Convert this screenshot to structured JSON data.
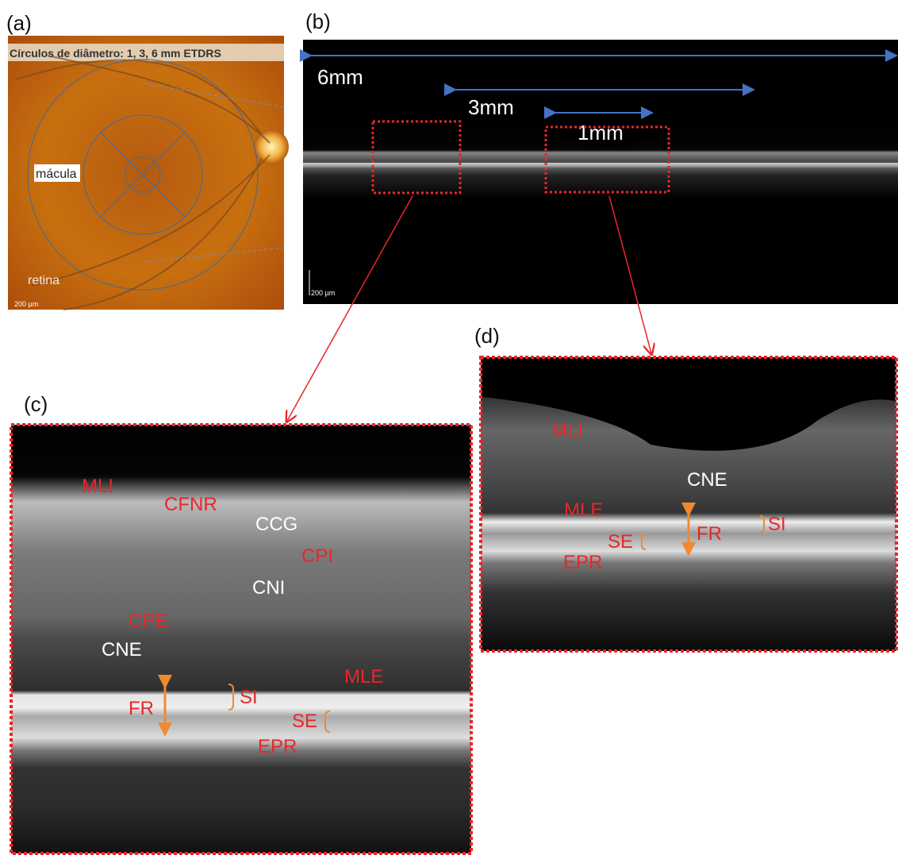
{
  "panels": {
    "a": {
      "label": "(a)",
      "header": "Círculos de diâmetro: 1, 3, 6 mm ETDRS",
      "macula": "mácula",
      "retina": "retina",
      "scale": "200 µm"
    },
    "b": {
      "label": "(b)",
      "measures": [
        "6mm",
        "3mm",
        "1mm"
      ],
      "scale": "200 µm"
    },
    "c": {
      "label": "(c)",
      "layers": {
        "MLI": "MLI",
        "CFNR": "CFNR",
        "CCG": "CCG",
        "CPI": "CPI",
        "CNI": "CNI",
        "CPE": "CPE",
        "CNE": "CNE",
        "MLE": "MLE",
        "FR": "FR",
        "SI": "SI",
        "SE": "SE",
        "EPR": "EPR"
      }
    },
    "d": {
      "label": "(d)",
      "layers": {
        "MLI": "MLI",
        "CNE": "CNE",
        "MLE": "MLE",
        "FR": "FR",
        "SI": "SI",
        "SE": "SE",
        "EPR": "EPR"
      }
    }
  }
}
